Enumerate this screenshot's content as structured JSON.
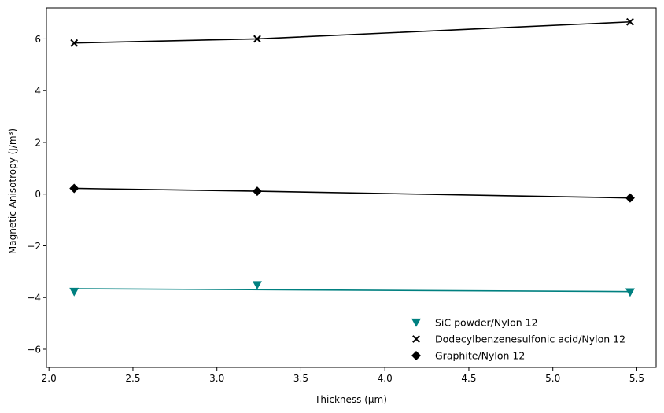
{
  "chart_data": {
    "type": "scatter",
    "title": "",
    "xlabel": "Thickness (μm)",
    "ylabel": "Magnetic Anisotropy (J/m³)",
    "xlim": [
      1.985,
      5.615
    ],
    "ylim": [
      -6.7,
      7.2
    ],
    "xticks": [
      2.0,
      2.5,
      3.0,
      3.5,
      4.0,
      4.5,
      5.0,
      5.5
    ],
    "xtick_labels": [
      "2.0",
      "2.5",
      "3.0",
      "3.5",
      "4.0",
      "4.5",
      "5.0",
      "5.5"
    ],
    "yticks": [
      -6,
      -4,
      -2,
      0,
      2,
      4,
      6
    ],
    "ytick_labels": [
      "−6",
      "−4",
      "−2",
      "0",
      "2",
      "4",
      "6"
    ],
    "grid": false,
    "legend_position": "lower-right",
    "series": [
      {
        "name": "SiC powder/Nylon 12",
        "marker": "triangle-down",
        "color": "#008080",
        "x": [
          2.15,
          3.24,
          5.46
        ],
        "y": [
          -3.78,
          -3.52,
          -3.8
        ],
        "fit_x": [
          2.15,
          5.46
        ],
        "fit_y": [
          -3.66,
          -3.77
        ]
      },
      {
        "name": "Dodecylbenzenesulfonic acid/Nylon 12",
        "marker": "x",
        "color": "#000000",
        "x": [
          2.15,
          3.24,
          5.46
        ],
        "y": [
          5.84,
          6.0,
          6.66
        ],
        "line": true
      },
      {
        "name": "Graphite/Nylon 12",
        "marker": "diamond",
        "color": "#000000",
        "x": [
          2.15,
          3.24,
          5.46
        ],
        "y": [
          0.22,
          0.11,
          -0.15
        ],
        "line": true
      }
    ]
  }
}
